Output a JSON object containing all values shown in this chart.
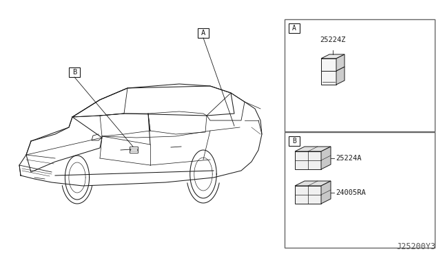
{
  "bg_color": "#ffffff",
  "line_color": "#1a1a1a",
  "fig_width": 6.4,
  "fig_height": 3.72,
  "dpi": 100,
  "diagram_code": "J25200Y3",
  "label_A": "A",
  "label_B": "B",
  "part_A": "25224Z",
  "part_B1": "25224A",
  "part_B2": "24005RA"
}
